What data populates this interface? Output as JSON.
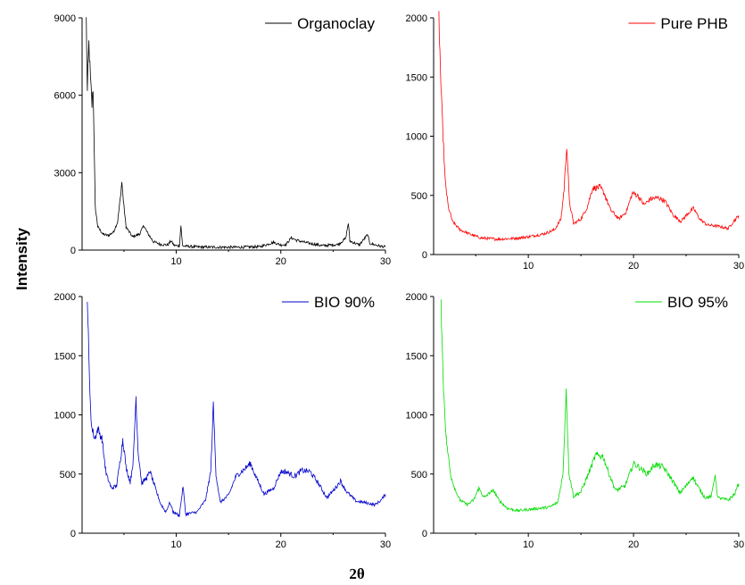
{
  "figure": {
    "ylabel": "Intensity",
    "xlabel": "2θ"
  },
  "chart_data": [
    {
      "type": "line",
      "series": [
        {
          "name": "Organoclay",
          "color": "#000000"
        }
      ],
      "xlim": [
        1,
        30
      ],
      "ylim": [
        0,
        9000
      ],
      "xticks": [
        10,
        20,
        30
      ],
      "yticks": [
        0,
        3000,
        6000,
        9000
      ],
      "legend": "top-right",
      "points": [
        [
          1.4,
          8900
        ],
        [
          1.5,
          6100
        ],
        [
          1.65,
          8000
        ],
        [
          1.8,
          6600
        ],
        [
          1.95,
          5600
        ],
        [
          2.05,
          6300
        ],
        [
          2.15,
          4200
        ],
        [
          2.25,
          1700
        ],
        [
          2.5,
          900
        ],
        [
          3,
          620
        ],
        [
          3.5,
          560
        ],
        [
          4,
          700
        ],
        [
          4.4,
          1100
        ],
        [
          4.65,
          2000
        ],
        [
          4.8,
          2650
        ],
        [
          4.95,
          1900
        ],
        [
          5.2,
          900
        ],
        [
          5.8,
          520
        ],
        [
          6.5,
          620
        ],
        [
          6.9,
          950
        ],
        [
          7.2,
          700
        ],
        [
          7.8,
          330
        ],
        [
          8.5,
          220
        ],
        [
          9.2,
          200
        ],
        [
          9.5,
          360
        ],
        [
          9.8,
          180
        ],
        [
          10.3,
          160
        ],
        [
          10.45,
          950
        ],
        [
          10.6,
          160
        ],
        [
          12,
          120
        ],
        [
          14,
          110
        ],
        [
          16,
          110
        ],
        [
          18,
          130
        ],
        [
          19.3,
          300
        ],
        [
          20,
          200
        ],
        [
          20.5,
          220
        ],
        [
          21,
          480
        ],
        [
          21.5,
          380
        ],
        [
          22.5,
          280
        ],
        [
          24,
          170
        ],
        [
          25.5,
          220
        ],
        [
          26.2,
          450
        ],
        [
          26.45,
          1050
        ],
        [
          26.6,
          350
        ],
        [
          27.5,
          200
        ],
        [
          28.3,
          600
        ],
        [
          28.5,
          260
        ],
        [
          29.5,
          150
        ],
        [
          30,
          120
        ]
      ]
    },
    {
      "type": "line",
      "series": [
        {
          "name": "Pure PHB",
          "color": "#ff0000"
        }
      ],
      "xlim": [
        1,
        30
      ],
      "ylim": [
        0,
        2000
      ],
      "xticks": [
        10,
        20,
        30
      ],
      "yticks": [
        0,
        500,
        1000,
        1500,
        2000
      ],
      "legend": "top-right",
      "points": [
        [
          1.5,
          2000
        ],
        [
          1.7,
          1400
        ],
        [
          1.9,
          1000
        ],
        [
          2.1,
          620
        ],
        [
          2.4,
          400
        ],
        [
          2.8,
          280
        ],
        [
          3.5,
          210
        ],
        [
          4.5,
          170
        ],
        [
          5.5,
          140
        ],
        [
          7,
          130
        ],
        [
          8.5,
          135
        ],
        [
          10,
          150
        ],
        [
          11.5,
          175
        ],
        [
          12.5,
          210
        ],
        [
          13.1,
          300
        ],
        [
          13.4,
          550
        ],
        [
          13.65,
          930
        ],
        [
          13.9,
          450
        ],
        [
          14.3,
          260
        ],
        [
          15,
          300
        ],
        [
          15.6,
          400
        ],
        [
          16.1,
          560
        ],
        [
          16.8,
          570
        ],
        [
          17.2,
          520
        ],
        [
          17.8,
          380
        ],
        [
          18.6,
          300
        ],
        [
          19.3,
          360
        ],
        [
          19.9,
          520
        ],
        [
          20.4,
          500
        ],
        [
          21,
          420
        ],
        [
          21.6,
          470
        ],
        [
          22.4,
          480
        ],
        [
          23,
          450
        ],
        [
          23.8,
          330
        ],
        [
          24.5,
          280
        ],
        [
          25.2,
          350
        ],
        [
          25.7,
          390
        ],
        [
          26.3,
          300
        ],
        [
          27,
          250
        ],
        [
          28,
          240
        ],
        [
          29,
          220
        ],
        [
          29.6,
          290
        ],
        [
          30,
          330
        ]
      ]
    },
    {
      "type": "line",
      "series": [
        {
          "name": "BIO 90%",
          "color": "#0000cc"
        }
      ],
      "xlim": [
        1,
        30
      ],
      "ylim": [
        0,
        2000
      ],
      "xticks": [
        10,
        20,
        30
      ],
      "yticks": [
        0,
        500,
        1000,
        1500,
        2000
      ],
      "legend": "top-right",
      "points": [
        [
          1.5,
          2000
        ],
        [
          1.7,
          1300
        ],
        [
          1.9,
          900
        ],
        [
          2.2,
          800
        ],
        [
          2.5,
          880
        ],
        [
          2.9,
          800
        ],
        [
          3.3,
          500
        ],
        [
          3.8,
          380
        ],
        [
          4.3,
          400
        ],
        [
          4.7,
          650
        ],
        [
          4.9,
          800
        ],
        [
          5.2,
          560
        ],
        [
          5.6,
          430
        ],
        [
          5.9,
          620
        ],
        [
          6.15,
          1150
        ],
        [
          6.35,
          700
        ],
        [
          6.7,
          420
        ],
        [
          7.2,
          470
        ],
        [
          7.5,
          520
        ],
        [
          8,
          380
        ],
        [
          8.5,
          250
        ],
        [
          9,
          180
        ],
        [
          9.4,
          260
        ],
        [
          9.7,
          180
        ],
        [
          10.3,
          150
        ],
        [
          10.65,
          400
        ],
        [
          10.9,
          160
        ],
        [
          12,
          180
        ],
        [
          12.8,
          280
        ],
        [
          13.3,
          520
        ],
        [
          13.55,
          1090
        ],
        [
          13.8,
          500
        ],
        [
          14.2,
          260
        ],
        [
          15,
          320
        ],
        [
          15.7,
          480
        ],
        [
          16.5,
          540
        ],
        [
          17.1,
          590
        ],
        [
          17.6,
          480
        ],
        [
          18.4,
          330
        ],
        [
          19.3,
          380
        ],
        [
          20,
          520
        ],
        [
          20.5,
          520
        ],
        [
          21.3,
          480
        ],
        [
          22,
          530
        ],
        [
          22.8,
          520
        ],
        [
          23.6,
          420
        ],
        [
          24.4,
          300
        ],
        [
          25.2,
          380
        ],
        [
          25.7,
          440
        ],
        [
          26.3,
          350
        ],
        [
          27.2,
          270
        ],
        [
          28,
          260
        ],
        [
          29,
          240
        ],
        [
          29.6,
          280
        ],
        [
          30,
          330
        ]
      ]
    },
    {
      "type": "line",
      "series": [
        {
          "name": "BIO 95%",
          "color": "#00dd00"
        }
      ],
      "xlim": [
        1,
        30
      ],
      "ylim": [
        0,
        2000
      ],
      "xticks": [
        10,
        20,
        30
      ],
      "yticks": [
        0,
        500,
        1000,
        1500,
        2000
      ],
      "legend": "top-right",
      "points": [
        [
          1.7,
          2000
        ],
        [
          1.9,
          1300
        ],
        [
          2.2,
          800
        ],
        [
          2.6,
          500
        ],
        [
          3,
          380
        ],
        [
          3.5,
          280
        ],
        [
          4.2,
          240
        ],
        [
          4.8,
          280
        ],
        [
          5.3,
          380
        ],
        [
          5.8,
          300
        ],
        [
          6.3,
          340
        ],
        [
          6.7,
          360
        ],
        [
          7.2,
          280
        ],
        [
          8,
          210
        ],
        [
          9,
          190
        ],
        [
          10,
          200
        ],
        [
          11,
          210
        ],
        [
          12,
          220
        ],
        [
          12.8,
          260
        ],
        [
          13.3,
          500
        ],
        [
          13.6,
          1220
        ],
        [
          13.85,
          520
        ],
        [
          14.3,
          310
        ],
        [
          15,
          350
        ],
        [
          15.8,
          520
        ],
        [
          16.4,
          660
        ],
        [
          17.1,
          650
        ],
        [
          17.6,
          520
        ],
        [
          18.3,
          360
        ],
        [
          19.2,
          400
        ],
        [
          20,
          590
        ],
        [
          20.5,
          560
        ],
        [
          21.3,
          500
        ],
        [
          22,
          580
        ],
        [
          22.8,
          560
        ],
        [
          23.6,
          460
        ],
        [
          24.4,
          340
        ],
        [
          25.2,
          420
        ],
        [
          25.6,
          480
        ],
        [
          26.2,
          380
        ],
        [
          26.8,
          300
        ],
        [
          27.4,
          310
        ],
        [
          27.75,
          500
        ],
        [
          28,
          300
        ],
        [
          29,
          280
        ],
        [
          29.6,
          330
        ],
        [
          30,
          420
        ]
      ]
    }
  ]
}
